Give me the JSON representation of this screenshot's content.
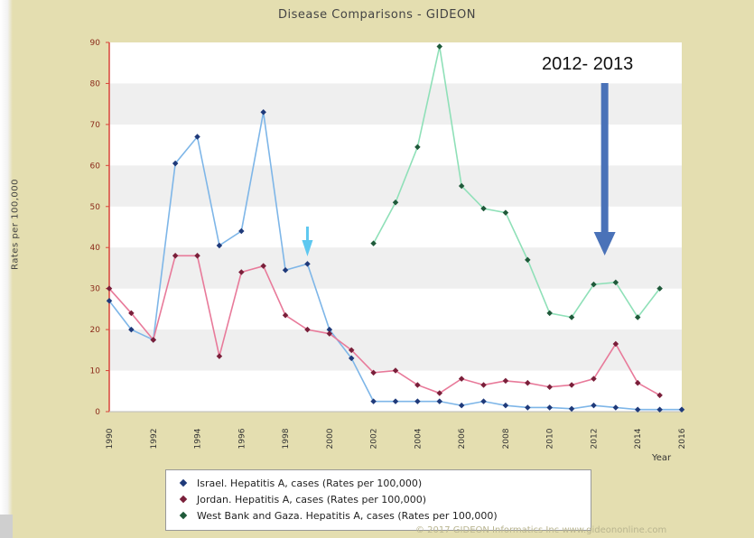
{
  "chart_data": {
    "type": "line",
    "title": "Disease Comparisons - GIDEON",
    "ylabel": "Rates per 100,000",
    "xlabel": "Year",
    "xlim": [
      1990,
      2016
    ],
    "ylim": [
      0,
      90
    ],
    "xticks": [
      1990,
      1992,
      1994,
      1996,
      1998,
      2000,
      2002,
      2004,
      2006,
      2008,
      2010,
      2012,
      2014,
      2016
    ],
    "yticks": [
      0,
      10,
      20,
      30,
      40,
      50,
      60,
      70,
      80,
      90
    ],
    "series": [
      {
        "name": "Israel. Hepatitis A, cases (Rates per 100,000)",
        "color": "#7eb6e8",
        "marker_color": "#1f3a7a",
        "x": [
          1990,
          1991,
          1992,
          1993,
          1994,
          1995,
          1996,
          1997,
          1998,
          1999,
          2000,
          2001,
          2002,
          2003,
          2004,
          2005,
          2006,
          2007,
          2008,
          2009,
          2010,
          2011,
          2012,
          2013,
          2014,
          2015,
          2016
        ],
        "y": [
          27,
          20,
          17.5,
          60.5,
          67,
          40.5,
          44,
          73,
          34.5,
          36,
          20,
          13,
          2.5,
          2.5,
          2.5,
          2.5,
          1.5,
          2.5,
          1.5,
          1,
          1,
          0.7,
          1.5,
          1,
          0.5,
          0.5,
          0.5
        ]
      },
      {
        "name": "Jordan. Hepatitis A, cases (Rates per 100,000)",
        "color": "#e87a9a",
        "marker_color": "#7a1f3a",
        "x": [
          1990,
          1991,
          1992,
          1993,
          1994,
          1995,
          1996,
          1997,
          1998,
          1999,
          2000,
          2001,
          2002,
          2003,
          2004,
          2005,
          2006,
          2007,
          2008,
          2009,
          2010,
          2011,
          2012,
          2013,
          2014,
          2015
        ],
        "y": [
          30,
          24,
          17.5,
          38,
          38,
          13.5,
          34,
          35.5,
          23.5,
          20,
          19,
          15,
          9.5,
          10,
          6.5,
          4.5,
          8,
          6.5,
          7.5,
          7,
          6,
          6.5,
          8,
          16.5,
          7,
          4
        ]
      },
      {
        "name": "West Bank and Gaza. Hepatitis A, cases (Rates per 100,000)",
        "color": "#8fe0b8",
        "marker_color": "#1f5a3a",
        "x": [
          2002,
          2003,
          2004,
          2005,
          2006,
          2007,
          2008,
          2009,
          2010,
          2011,
          2012,
          2013,
          2014,
          2015
        ],
        "y": [
          41,
          51,
          64.5,
          89,
          55,
          49.5,
          48.5,
          37,
          24,
          23,
          31,
          31.5,
          23,
          30
        ]
      }
    ],
    "annotations": {
      "arrow_label": "2012- 2013",
      "arrow_year": 2012.5,
      "light_arrow_year": 1999
    },
    "grid": "horizontal bands",
    "legend_position": "bottom-center"
  },
  "footer": "© 2017 GIDEON Informatics Inc www.gideononline.com"
}
